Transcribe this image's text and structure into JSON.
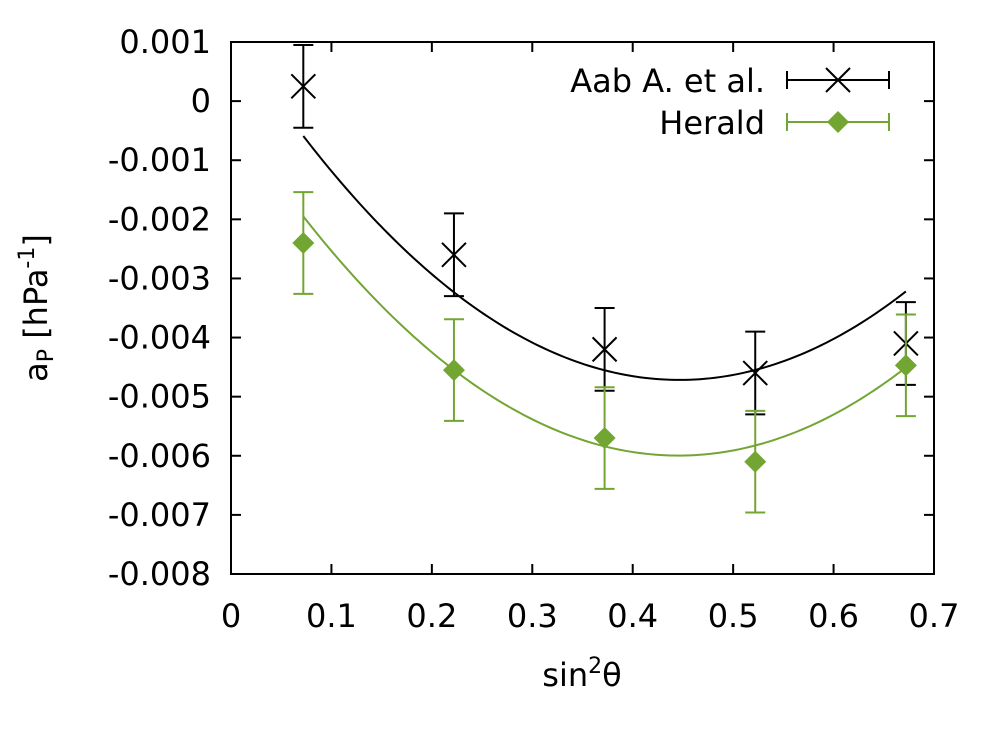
{
  "chart_data": {
    "type": "scatter",
    "xlabel": "sin²θ",
    "xlabel_base": "sin",
    "xlabel_sup": "2",
    "xlabel_tail": "θ",
    "ylabel_base": "a",
    "ylabel_sub": "P",
    "ylabel_mid": " [hPa",
    "ylabel_sup": "-1",
    "ylabel_tail": "]",
    "xlim": [
      0,
      0.7
    ],
    "ylim": [
      -0.008,
      0.001
    ],
    "xticks": [
      "0",
      "0.1",
      "0.2",
      "0.3",
      "0.4",
      "0.5",
      "0.6",
      "0.7"
    ],
    "yticks": [
      "0.001",
      "0",
      "-0.001",
      "-0.002",
      "-0.003",
      "-0.004",
      "-0.005",
      "-0.006",
      "-0.007",
      "-0.008"
    ],
    "legend_position": "top-right",
    "series": [
      {
        "name": "Aab A. et al.",
        "color": "#000000",
        "marker": "x",
        "x": [
          0.072,
          0.222,
          0.372,
          0.522,
          0.672
        ],
        "y": [
          0.00025,
          -0.0026,
          -0.0042,
          -0.0046,
          -0.0041
        ],
        "yerr": [
          0.0007,
          0.0007,
          0.0007,
          0.0007,
          0.0007
        ],
        "fit": [
          0.00115,
          -0.02628,
          0.02943
        ]
      },
      {
        "name": "Herald",
        "color": "#73a533",
        "marker": "diamond",
        "x": [
          0.072,
          0.222,
          0.372,
          0.522,
          0.672
        ],
        "y": [
          -0.0024,
          -0.00455,
          -0.0057,
          -0.0061,
          -0.00447
        ],
        "yerr": [
          0.00086,
          0.00086,
          0.00086,
          0.00086,
          0.00086
        ],
        "fit": [
          -0.00024,
          -0.02585,
          0.02902
        ]
      }
    ]
  }
}
